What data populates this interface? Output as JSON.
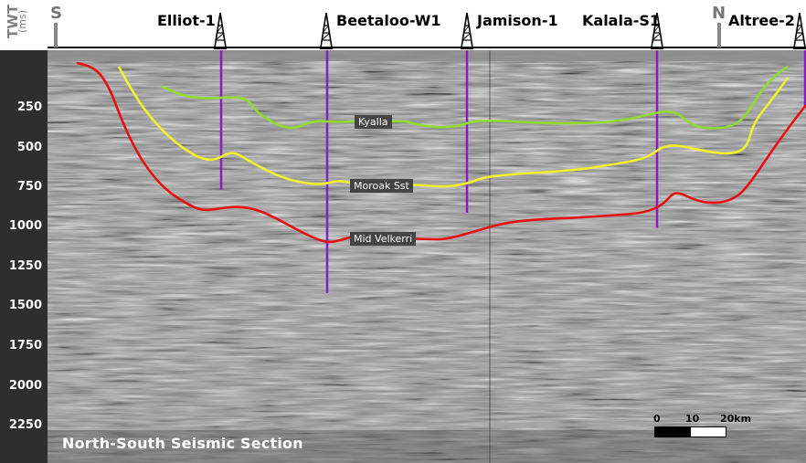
{
  "axis": {
    "title": "TWT",
    "unit": "(ms)",
    "ticks": [
      "250",
      "500",
      "750",
      "1000",
      "1250",
      "1500",
      "1750",
      "2000",
      "2250"
    ],
    "tick_values": [
      250,
      500,
      750,
      1000,
      1250,
      1500,
      1750,
      2000,
      2250
    ]
  },
  "directions": {
    "south": "S",
    "north": "N"
  },
  "wells": [
    {
      "name": "Elliot-1",
      "depth_ms": 780
    },
    {
      "name": "Beetaloo-W1",
      "depth_ms": 1430
    },
    {
      "name": "Jamison-1",
      "depth_ms": 925
    },
    {
      "name": "Kalala-S1",
      "depth_ms": 1020
    },
    {
      "name": "Altree-2",
      "depth_ms": 260
    }
  ],
  "horizons": [
    {
      "name": "Kyalla",
      "color": "#8fdc2e"
    },
    {
      "name": "Moroak Sst",
      "color": "#f2f02a"
    },
    {
      "name": "Mid  Velkerri",
      "color": "#e81010"
    }
  ],
  "colors": {
    "well_line": "#8a1cc4",
    "grid_line": "#000000"
  },
  "caption": "North-South Seismic Section",
  "scale_bar": {
    "labels": [
      "0",
      "10",
      "20km"
    ]
  }
}
